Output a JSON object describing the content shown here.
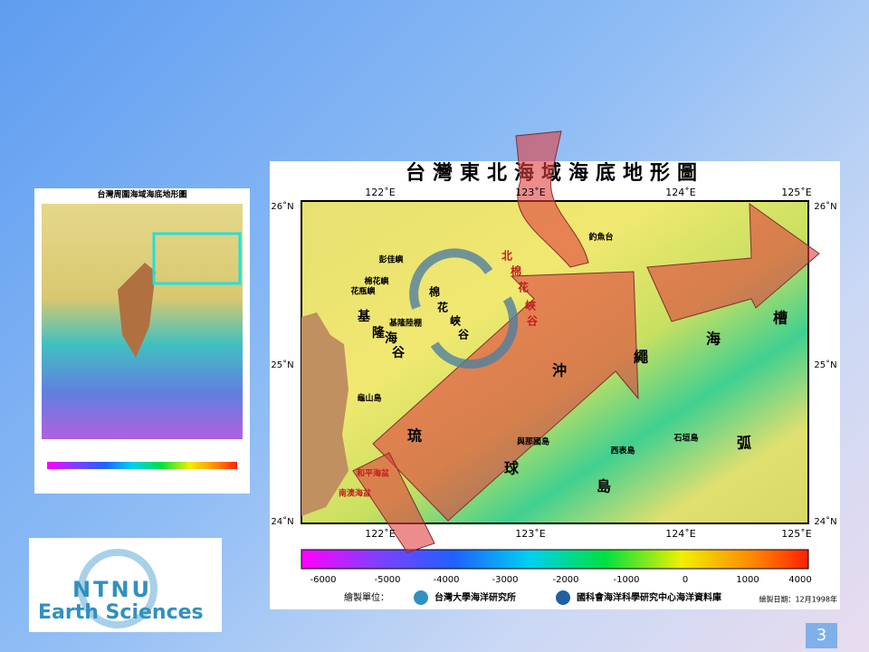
{
  "slide_number": "3",
  "logo": {
    "line1": "NTNU",
    "line2": "Earth Sciences"
  },
  "small_map": {
    "title": "台灣周圍海域海底地形圖"
  },
  "main_map": {
    "title": "台灣東北海域海底地形圖",
    "lon_labels": [
      "122˚E",
      "123˚E",
      "124˚E",
      "125˚E"
    ],
    "lat_labels": [
      "26˚N",
      "25˚N",
      "24˚N"
    ],
    "place_names": [
      "彭佳嶼",
      "棉花嶼",
      "花瓶嶼",
      "基隆陸棚",
      "釣魚台",
      "龜山島",
      "與那國島",
      "西表島",
      "石垣島",
      "和平海盆",
      "南澳海盆"
    ],
    "keelung_valley": [
      "基",
      "隆",
      "海",
      "谷"
    ],
    "mianhua_canyon": [
      "棉",
      "花",
      "峽",
      "谷"
    ],
    "north_mianhua_canyon": [
      "北",
      "棉",
      "花",
      "峽",
      "谷"
    ],
    "okinawa_trough": [
      "沖",
      "繩",
      "海",
      "槽"
    ],
    "ryukyu_arc": [
      "琉",
      "球",
      "島",
      "弧"
    ],
    "colorbar_ticks": [
      -6000,
      -5000,
      -4000,
      -3000,
      -2000,
      -1000,
      0,
      1000,
      4000
    ],
    "credits_label": "繪製單位：",
    "institutions": [
      "台灣大學海洋研究所",
      "國科會海洋科學研究中心海洋資料庫"
    ],
    "date": "繪製日期：12月1998年"
  }
}
